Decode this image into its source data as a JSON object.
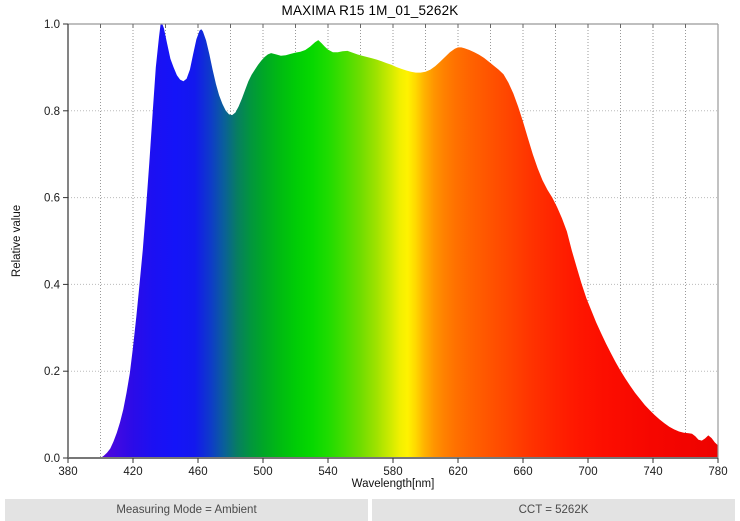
{
  "window": {
    "background": "#ffffff"
  },
  "chart_data": {
    "type": "area",
    "title": "MAXIMA R15 1M_01_5262K",
    "xlabel": "Wavelength[nm]",
    "ylabel": "Relative value",
    "xlim": [
      380,
      780
    ],
    "ylim": [
      0.0,
      1.0
    ],
    "x_ticks": [
      380,
      420,
      460,
      500,
      540,
      580,
      620,
      660,
      700,
      740,
      780
    ],
    "y_ticks": [
      0.0,
      0.2,
      0.4,
      0.6,
      0.8,
      1.0
    ],
    "grid": {
      "x_minor_step_nm": 20,
      "y_step": 0.2,
      "style": "dotted",
      "legend": "none"
    },
    "points": [
      [
        400,
        0.0
      ],
      [
        402,
        0.005
      ],
      [
        404,
        0.012
      ],
      [
        406,
        0.022
      ],
      [
        408,
        0.038
      ],
      [
        410,
        0.058
      ],
      [
        412,
        0.082
      ],
      [
        414,
        0.112
      ],
      [
        416,
        0.15
      ],
      [
        418,
        0.195
      ],
      [
        420,
        0.255
      ],
      [
        422,
        0.325
      ],
      [
        424,
        0.4
      ],
      [
        426,
        0.48
      ],
      [
        428,
        0.575
      ],
      [
        430,
        0.68
      ],
      [
        432,
        0.79
      ],
      [
        434,
        0.9
      ],
      [
        436,
        0.97
      ],
      [
        437,
        1.0
      ],
      [
        438,
        1.0
      ],
      [
        439,
        0.99
      ],
      [
        441,
        0.955
      ],
      [
        443,
        0.92
      ],
      [
        445,
        0.9
      ],
      [
        447,
        0.882
      ],
      [
        449,
        0.872
      ],
      [
        451,
        0.868
      ],
      [
        453,
        0.874
      ],
      [
        455,
        0.895
      ],
      [
        457,
        0.93
      ],
      [
        459,
        0.965
      ],
      [
        461,
        0.985
      ],
      [
        462,
        0.988
      ],
      [
        463,
        0.983
      ],
      [
        465,
        0.962
      ],
      [
        467,
        0.93
      ],
      [
        469,
        0.895
      ],
      [
        471,
        0.862
      ],
      [
        473,
        0.836
      ],
      [
        475,
        0.816
      ],
      [
        477,
        0.801
      ],
      [
        479,
        0.792
      ],
      [
        481,
        0.79
      ],
      [
        483,
        0.796
      ],
      [
        485,
        0.81
      ],
      [
        487,
        0.828
      ],
      [
        489,
        0.848
      ],
      [
        491,
        0.868
      ],
      [
        493,
        0.883
      ],
      [
        495,
        0.895
      ],
      [
        497,
        0.906
      ],
      [
        499,
        0.916
      ],
      [
        501,
        0.924
      ],
      [
        503,
        0.93
      ],
      [
        505,
        0.933
      ],
      [
        508,
        0.93
      ],
      [
        511,
        0.927
      ],
      [
        514,
        0.928
      ],
      [
        517,
        0.931
      ],
      [
        520,
        0.934
      ],
      [
        523,
        0.936
      ],
      [
        526,
        0.94
      ],
      [
        529,
        0.948
      ],
      [
        532,
        0.958
      ],
      [
        534,
        0.963
      ],
      [
        536,
        0.956
      ],
      [
        538,
        0.948
      ],
      [
        540,
        0.941
      ],
      [
        543,
        0.935
      ],
      [
        546,
        0.935
      ],
      [
        549,
        0.937
      ],
      [
        552,
        0.938
      ],
      [
        555,
        0.934
      ],
      [
        558,
        0.93
      ],
      [
        561,
        0.927
      ],
      [
        564,
        0.924
      ],
      [
        567,
        0.921
      ],
      [
        570,
        0.918
      ],
      [
        573,
        0.914
      ],
      [
        576,
        0.91
      ],
      [
        579,
        0.906
      ],
      [
        582,
        0.901
      ],
      [
        585,
        0.897
      ],
      [
        588,
        0.893
      ],
      [
        591,
        0.89
      ],
      [
        594,
        0.888
      ],
      [
        597,
        0.888
      ],
      [
        600,
        0.89
      ],
      [
        603,
        0.895
      ],
      [
        606,
        0.903
      ],
      [
        609,
        0.913
      ],
      [
        612,
        0.924
      ],
      [
        615,
        0.935
      ],
      [
        618,
        0.943
      ],
      [
        620,
        0.946
      ],
      [
        622,
        0.946
      ],
      [
        624,
        0.944
      ],
      [
        627,
        0.94
      ],
      [
        630,
        0.935
      ],
      [
        633,
        0.929
      ],
      [
        636,
        0.922
      ],
      [
        639,
        0.913
      ],
      [
        642,
        0.904
      ],
      [
        645,
        0.895
      ],
      [
        648,
        0.884
      ],
      [
        651,
        0.865
      ],
      [
        654,
        0.84
      ],
      [
        657,
        0.81
      ],
      [
        660,
        0.775
      ],
      [
        663,
        0.737
      ],
      [
        666,
        0.7
      ],
      [
        669,
        0.668
      ],
      [
        672,
        0.64
      ],
      [
        675,
        0.618
      ],
      [
        678,
        0.6
      ],
      [
        681,
        0.578
      ],
      [
        684,
        0.552
      ],
      [
        687,
        0.522
      ],
      [
        690,
        0.478
      ],
      [
        693,
        0.44
      ],
      [
        696,
        0.402
      ],
      [
        699,
        0.368
      ],
      [
        702,
        0.34
      ],
      [
        705,
        0.313
      ],
      [
        708,
        0.288
      ],
      [
        711,
        0.264
      ],
      [
        714,
        0.242
      ],
      [
        717,
        0.221
      ],
      [
        720,
        0.201
      ],
      [
        723,
        0.183
      ],
      [
        726,
        0.166
      ],
      [
        729,
        0.15
      ],
      [
        732,
        0.136
      ],
      [
        735,
        0.122
      ],
      [
        738,
        0.11
      ],
      [
        741,
        0.099
      ],
      [
        744,
        0.089
      ],
      [
        747,
        0.08
      ],
      [
        750,
        0.072
      ],
      [
        753,
        0.066
      ],
      [
        756,
        0.061
      ],
      [
        759,
        0.058
      ],
      [
        762,
        0.057
      ],
      [
        764,
        0.056
      ],
      [
        766,
        0.05
      ],
      [
        768,
        0.042
      ],
      [
        770,
        0.04
      ],
      [
        772,
        0.045
      ],
      [
        774,
        0.052
      ],
      [
        776,
        0.046
      ],
      [
        778,
        0.036
      ],
      [
        780,
        0.029
      ]
    ],
    "spectrum_gradient": [
      [
        395,
        "#5f00d2"
      ],
      [
        408,
        "#4409e0"
      ],
      [
        420,
        "#2b0be8"
      ],
      [
        432,
        "#1c10f2"
      ],
      [
        446,
        "#1414f8"
      ],
      [
        458,
        "#1318ee"
      ],
      [
        468,
        "#0e3cc8"
      ],
      [
        476,
        "#0a5f9a"
      ],
      [
        484,
        "#077d62"
      ],
      [
        492,
        "#02953f"
      ],
      [
        500,
        "#00a627"
      ],
      [
        510,
        "#00ba12"
      ],
      [
        520,
        "#00cc06"
      ],
      [
        530,
        "#06d800"
      ],
      [
        540,
        "#1edc00"
      ],
      [
        550,
        "#44dd00"
      ],
      [
        560,
        "#6fdd00"
      ],
      [
        570,
        "#a0e200"
      ],
      [
        578,
        "#ccea00"
      ],
      [
        584,
        "#f0f000"
      ],
      [
        589,
        "#fff200"
      ],
      [
        594,
        "#ffd800"
      ],
      [
        599,
        "#ffb400"
      ],
      [
        605,
        "#ff9600"
      ],
      [
        611,
        "#ff8200"
      ],
      [
        618,
        "#ff7200"
      ],
      [
        628,
        "#ff6200"
      ],
      [
        640,
        "#ff5300"
      ],
      [
        652,
        "#ff4400"
      ],
      [
        665,
        "#ff3300"
      ],
      [
        678,
        "#ff2500"
      ],
      [
        692,
        "#ff1800"
      ],
      [
        710,
        "#fc0e00"
      ],
      [
        740,
        "#f60600"
      ],
      [
        780,
        "#ee0200"
      ]
    ],
    "axis_colors": {
      "left": "#333333",
      "bottom": "#777777",
      "top": "#999999",
      "right": "#999999",
      "grid_v": "#999999",
      "grid_h": "#bbbbbb",
      "tick": "#333333",
      "tick_label": "#1a1a1a"
    }
  },
  "footer": {
    "left": "Measuring Mode = Ambient",
    "right": "CCT = 5262K"
  }
}
